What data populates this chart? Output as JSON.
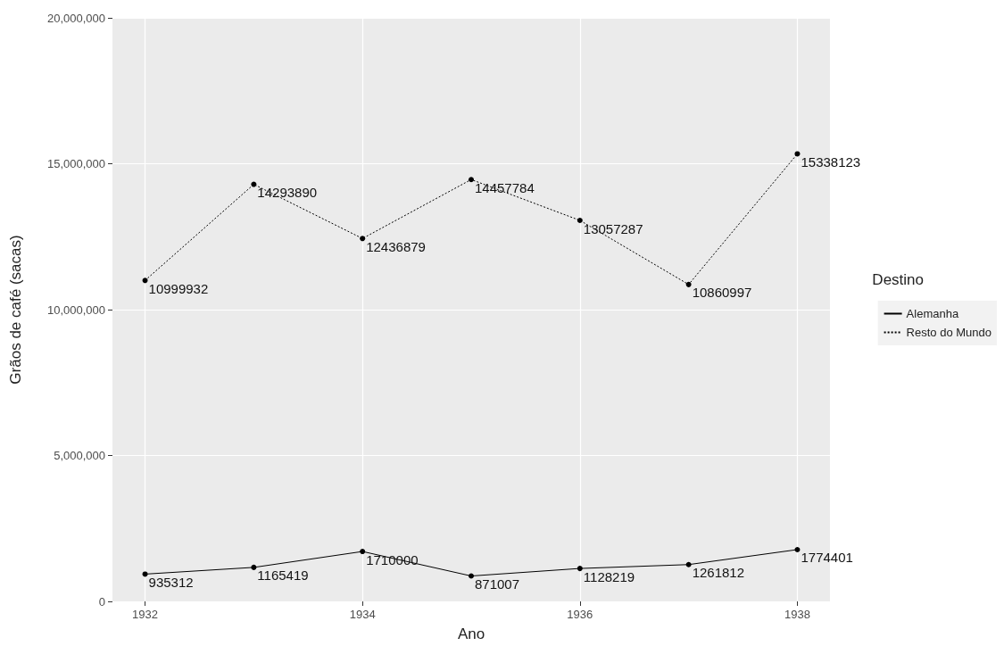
{
  "chart_data": {
    "type": "line",
    "xlabel": "Ano",
    "ylabel": "Grãos de café (sacas)",
    "legend_title": "Destino",
    "x": [
      1932,
      1933,
      1934,
      1935,
      1936,
      1937,
      1938
    ],
    "series": [
      {
        "name": "Alemanha",
        "color": "#000000",
        "line_style": "solid",
        "values": [
          935312,
          1165419,
          1710000,
          871007,
          1128219,
          1261812,
          1774401
        ]
      },
      {
        "name": "Resto do Mundo",
        "color": "#000000",
        "line_style": "dotted",
        "values": [
          10999932,
          14293890,
          12436879,
          14457784,
          13057287,
          10860997,
          15338123
        ]
      }
    ],
    "xlim": [
      1931.7,
      1938.3
    ],
    "xticks": [
      1932,
      1934,
      1936,
      1938
    ],
    "ylim": [
      0,
      20000000
    ],
    "yticks": [
      0,
      {
        "value": 5000000,
        "label": "5,000,000"
      },
      {
        "value": 10000000,
        "label": "10,000,000"
      },
      {
        "value": 15000000,
        "label": "15,000,000"
      },
      {
        "value": 20000000,
        "label": "20,000,000"
      }
    ],
    "grid": true,
    "legend": "right",
    "marker": "circle",
    "data_labels": true
  }
}
